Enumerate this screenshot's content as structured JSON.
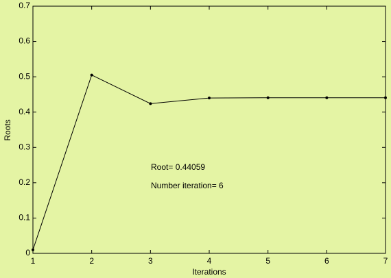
{
  "chart_data": {
    "type": "line",
    "x": [
      1,
      2,
      3,
      4,
      5,
      6,
      7
    ],
    "series": [
      {
        "color": "#000000",
        "values": [
          0.01,
          0.505,
          0.424,
          0.44,
          0.4406,
          0.4406,
          0.4406
        ]
      }
    ],
    "xlim": [
      1,
      7
    ],
    "xticks": [
      1,
      2,
      3,
      4,
      5,
      6,
      7
    ],
    "ylim": [
      0,
      0.7
    ],
    "yticks": [
      0,
      0.1,
      0.2,
      0.3,
      0.4,
      0.5,
      0.6,
      0.7
    ],
    "x_label": "Iterations",
    "y_label": "Roots",
    "annotations": [
      "Root= 0.44059",
      "Number iteration= 6"
    ]
  }
}
